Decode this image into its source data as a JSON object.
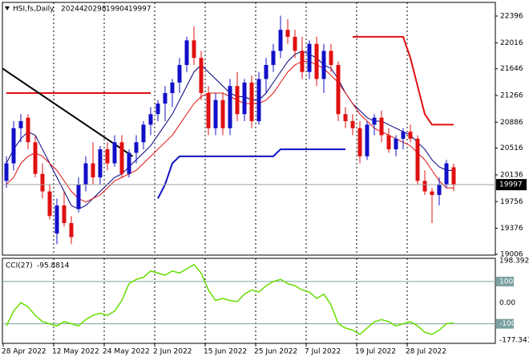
{
  "chart_data": {
    "type": "candlestick",
    "title": "HSI,fs,Daily",
    "categories": [
      "28 Apr 2022",
      null,
      null,
      null,
      null,
      null,
      null,
      "12 May 2022",
      null,
      null,
      null,
      null,
      null,
      null,
      "24 May 2022",
      null,
      null,
      null,
      null,
      null,
      null,
      "2 Jun 2022",
      null,
      null,
      null,
      null,
      null,
      null,
      "15 Jun 2022",
      null,
      null,
      null,
      null,
      null,
      null,
      "25 Jun 2022",
      null,
      null,
      null,
      null,
      null,
      null,
      "7 Jul 2022",
      null,
      null,
      null,
      null,
      null,
      null,
      "19 Jul 2022",
      null,
      null,
      null,
      null,
      null,
      null,
      "28 Jul 2022",
      null,
      null,
      null,
      null,
      null,
      null
    ],
    "open": [
      20050,
      20300,
      20800,
      20950,
      20600,
      20150,
      19900,
      19300,
      19700,
      19450,
      19650,
      20000,
      20300,
      20100,
      20500,
      20300,
      20600,
      20150,
      20450,
      20600,
      20850,
      21000,
      21150,
      21300,
      21450,
      21700,
      22050,
      21800,
      21300,
      20800,
      21200,
      20800,
      21400,
      21000,
      21450,
      20900,
      21500,
      21700,
      21900,
      22200,
      22100,
      21900,
      21600,
      22000,
      21500,
      21900,
      21700,
      21000,
      20900,
      20800,
      20400,
      20850,
      20950,
      20700,
      20500,
      20650,
      20750,
      20650,
      20050,
      19900,
      19850,
      20000,
      20244
    ],
    "high": [
      20400,
      20900,
      21000,
      21000,
      20700,
      20300,
      20000,
      19800,
      19900,
      19550,
      20100,
      20400,
      20600,
      20550,
      20600,
      20700,
      20700,
      20500,
      20700,
      20900,
      21100,
      21200,
      21400,
      21500,
      21800,
      22100,
      22250,
      21900,
      21400,
      21300,
      21300,
      21500,
      21600,
      21500,
      21550,
      21600,
      21800,
      22000,
      22400,
      22350,
      22200,
      22100,
      22050,
      22100,
      22000,
      22000,
      21750,
      21100,
      21000,
      20900,
      20900,
      21000,
      21050,
      20800,
      20700,
      20800,
      20850,
      20700,
      20200,
      19950,
      20100,
      20350,
      20298
    ],
    "low": [
      19950,
      20200,
      20600,
      20500,
      20100,
      19800,
      19500,
      19150,
      19400,
      19150,
      19600,
      19900,
      20000,
      20000,
      20200,
      20250,
      20100,
      20100,
      20300,
      20500,
      20700,
      20900,
      20900,
      21100,
      21300,
      21600,
      21700,
      21200,
      20700,
      20700,
      20700,
      20700,
      20900,
      20900,
      20800,
      20850,
      21300,
      21600,
      21800,
      22000,
      21800,
      21500,
      21500,
      21400,
      21300,
      21600,
      20900,
      20800,
      20700,
      20300,
      20350,
      20700,
      20600,
      20450,
      20400,
      20500,
      20600,
      20000,
      19850,
      19450,
      19700,
      19950,
      19904
    ],
    "close": [
      20300,
      20800,
      20900,
      20600,
      20150,
      19900,
      19550,
      19700,
      19450,
      19250,
      20000,
      20300,
      20100,
      20500,
      20300,
      20600,
      20150,
      20450,
      20600,
      20850,
      21000,
      21150,
      21300,
      21450,
      21700,
      22050,
      21800,
      21300,
      20800,
      21200,
      20800,
      21400,
      21000,
      21450,
      20900,
      21500,
      21700,
      21900,
      22200,
      22100,
      21900,
      21600,
      22000,
      21500,
      21900,
      21700,
      21000,
      20900,
      20800,
      20400,
      20850,
      20950,
      20700,
      20500,
      20650,
      20750,
      20650,
      20050,
      19900,
      19850,
      20000,
      20300,
      19997
    ],
    "up_color": "#1010c8",
    "down_color": "#e01010",
    "overlays": [
      {
        "color": "#000080",
        "values": [
          20300,
          20500,
          20650,
          20750,
          20700,
          20500,
          20300,
          20100,
          19900,
          19700,
          19650,
          19700,
          19800,
          19900,
          20000,
          20100,
          20150,
          20250,
          20350,
          20450,
          20550,
          20700,
          20850,
          21000,
          21200,
          21400,
          21600,
          21700,
          21600,
          21500,
          21400,
          21300,
          21250,
          21250,
          21200,
          21200,
          21300,
          21450,
          21600,
          21750,
          21850,
          21900,
          21850,
          21800,
          21700,
          21650,
          21500,
          21300,
          21150,
          21050,
          20950,
          20900,
          20900,
          20850,
          20800,
          20750,
          20700,
          20600,
          20500,
          20350,
          20250,
          20200,
          20200
        ]
      },
      {
        "color": "#e01010",
        "values": [
          20000,
          20100,
          20300,
          20400,
          20450,
          20400,
          20300,
          20200,
          20050,
          19900,
          19800,
          19750,
          19800,
          19850,
          19950,
          20050,
          20100,
          20150,
          20200,
          20300,
          20400,
          20500,
          20600,
          20700,
          20850,
          21000,
          21150,
          21250,
          21300,
          21300,
          21300,
          21250,
          21200,
          21150,
          21150,
          21150,
          21200,
          21300,
          21450,
          21600,
          21700,
          21750,
          21750,
          21700,
          21650,
          21550,
          21450,
          21300,
          21150,
          21000,
          20900,
          20800,
          20750,
          20700,
          20650,
          20600,
          20550,
          20450,
          20350,
          20200,
          20050,
          19950,
          19950
        ]
      },
      {
        "color": "#e01010",
        "width": 2,
        "values": [
          21300,
          21300,
          21300,
          21300,
          21300,
          21300,
          21300,
          21300,
          21300,
          21300,
          21300,
          21300,
          21300,
          21300,
          21300,
          21300,
          21300,
          21300,
          21300,
          21300,
          21300,
          null,
          null,
          null,
          null,
          null,
          null,
          null,
          null,
          null,
          null,
          null,
          null,
          null,
          null,
          null,
          null,
          null,
          null,
          null,
          null,
          null,
          null,
          null,
          null,
          null,
          null,
          null,
          22100,
          22100,
          22100,
          22100,
          22100,
          22100,
          22100,
          22100,
          21800,
          21400,
          21000,
          20850,
          20850,
          20850,
          20850
        ]
      },
      {
        "color": "#1010c8",
        "width": 2,
        "values": [
          null,
          null,
          null,
          null,
          null,
          null,
          null,
          null,
          null,
          null,
          null,
          null,
          null,
          null,
          null,
          null,
          null,
          null,
          null,
          null,
          null,
          19800,
          20000,
          20300,
          20400,
          20400,
          20400,
          20400,
          20400,
          20400,
          20400,
          20400,
          20400,
          20400,
          20400,
          20400,
          20400,
          20400,
          20500,
          20500,
          20500,
          20500,
          20500,
          20500,
          20500,
          20500,
          20500,
          20500,
          null,
          null,
          null,
          null,
          null,
          null,
          null,
          null,
          null,
          null,
          null,
          null,
          null,
          null,
          null
        ]
      }
    ],
    "trendline": {
      "color": "#000000",
      "values": [
        21650,
        20400
      ]
    },
    "ylim": [
      18994,
      22590
    ],
    "yticks": [
      22396,
      22016,
      21646,
      21266,
      20886,
      20516,
      20136,
      19756,
      19376,
      19006
    ],
    "cci": {
      "title": "CCI(27)",
      "color": "#66dd00",
      "values": [
        -110,
        -40,
        0,
        -20,
        -60,
        -90,
        -100,
        -110,
        -90,
        -100,
        -110,
        -80,
        -60,
        -50,
        -60,
        -40,
        10,
        90,
        110,
        120,
        150,
        140,
        130,
        150,
        140,
        160,
        180,
        140,
        60,
        10,
        20,
        10,
        5,
        40,
        60,
        50,
        80,
        100,
        110,
        90,
        80,
        60,
        50,
        20,
        40,
        -10,
        -100,
        -120,
        -130,
        -150,
        -120,
        -90,
        -80,
        -90,
        -110,
        -100,
        -90,
        -110,
        -140,
        -150,
        -130,
        -100,
        -95.8814
      ],
      "ylim": [
        -177.341,
        198.3924
      ],
      "yticks": [
        198.3924,
        100,
        {
          "value": 0,
          "label": "0.00"
        },
        -100,
        -177.341
      ]
    }
  }
}
